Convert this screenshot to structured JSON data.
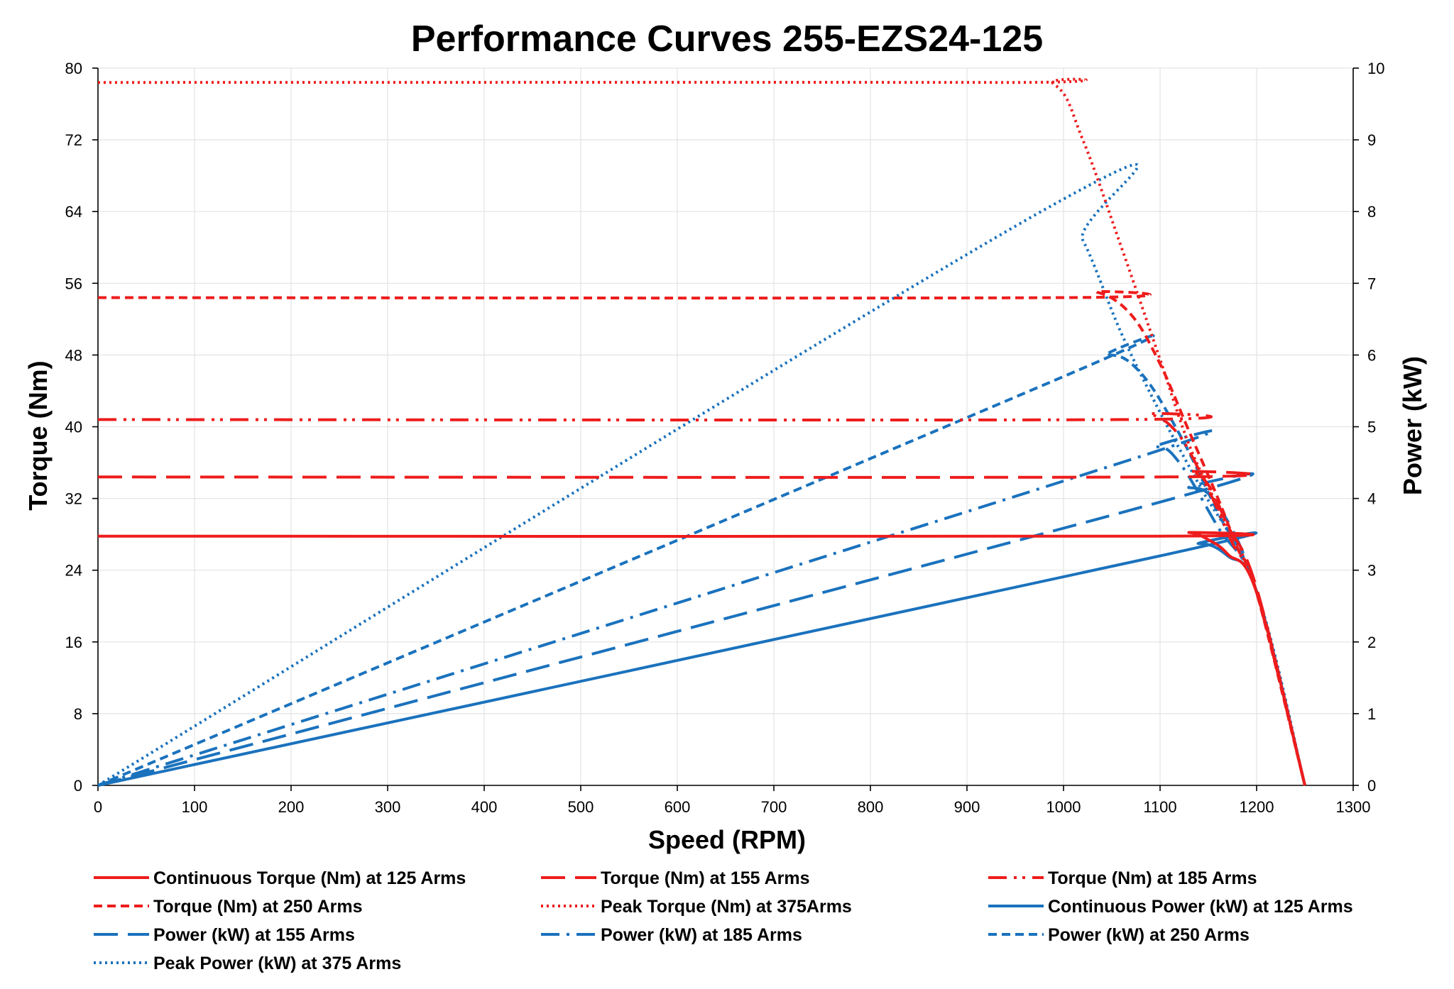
{
  "chart_data": {
    "type": "line",
    "title": "Performance Curves 255-EZS24-125",
    "xlabel": "Speed (RPM)",
    "ylabel_left": "Torque (Nm)",
    "ylabel_right": "Power (kW)",
    "xlim": [
      0,
      1300
    ],
    "ylim_left": [
      0,
      80
    ],
    "ylim_right": [
      0,
      10
    ],
    "x_ticks": [
      "0",
      "100",
      "200",
      "300",
      "400",
      "500",
      "600",
      "700",
      "800",
      "900",
      "1000",
      "1100",
      "1200",
      "1300"
    ],
    "y_left_ticks": [
      "0",
      "8",
      "16",
      "24",
      "32",
      "40",
      "48",
      "56",
      "64",
      "72",
      "80"
    ],
    "y_right_ticks": [
      "0",
      "1",
      "2",
      "3",
      "4",
      "5",
      "6",
      "7",
      "8",
      "9",
      "10"
    ],
    "grid": true,
    "legend_position": "bottom",
    "colors": {
      "torque": "#ee1c1c",
      "power": "#1a72bd"
    },
    "series": [
      {
        "name": "Continuous Torque (Nm) at 125 Arms",
        "axis": "left",
        "color": "#ee1c1c",
        "dash": "solid",
        "x": [
          0,
          1100,
          1130,
          1150,
          1170,
          1200,
          1250
        ],
        "y": [
          27.8,
          27.8,
          28.2,
          27.4,
          25.8,
          21.5,
          0
        ]
      },
      {
        "name": "Torque (Nm) at 155 Arms",
        "axis": "left",
        "color": "#ee1c1c",
        "dash": "longdash",
        "x": [
          0,
          1100,
          1130,
          1150,
          1170,
          1200,
          1250
        ],
        "y": [
          34.4,
          34.4,
          35,
          33.5,
          29,
          22,
          0
        ]
      },
      {
        "name": "Torque (Nm) at 185 Arms",
        "axis": "left",
        "color": "#ee1c1c",
        "dash": "dashdotdot",
        "x": [
          0,
          1060,
          1090,
          1120,
          1150,
          1175,
          1200,
          1250
        ],
        "y": [
          40.8,
          40.8,
          41.4,
          39,
          33,
          27,
          21.5,
          0
        ]
      },
      {
        "name": "Torque (Nm) at 250 Arms",
        "axis": "left",
        "color": "#ee1c1c",
        "dash": "dash",
        "x": [
          0,
          1000,
          1035,
          1070,
          1100,
          1130,
          1160,
          1180,
          1200,
          1250
        ],
        "y": [
          54.4,
          54.4,
          55,
          52.5,
          47,
          39.5,
          32,
          26.5,
          21.5,
          0
        ]
      },
      {
        "name": "Peak  Torque (Nm) at 375Arms",
        "axis": "left",
        "color": "#ee1c1c",
        "dash": "dot",
        "x": [
          0,
          930,
          990,
          1020,
          1060,
          1100,
          1130,
          1160,
          1200,
          1250
        ],
        "y": [
          78.4,
          78.4,
          78.2,
          72,
          60,
          47.5,
          38,
          31,
          21.5,
          0
        ]
      },
      {
        "name": "Continuous Power (kW) at 125 Arms",
        "axis": "right",
        "color": "#1a72bd",
        "dash": "solid",
        "x": [
          0,
          1100,
          1140,
          1170,
          1200,
          1250
        ],
        "y": [
          0,
          3.2,
          3.37,
          3.2,
          2.7,
          0
        ]
      },
      {
        "name": "Power (kW) at 155 Arms",
        "axis": "right",
        "color": "#1a72bd",
        "dash": "longdash",
        "x": [
          0,
          1100,
          1130,
          1160,
          1200,
          1250
        ],
        "y": [
          0,
          3.95,
          4.15,
          3.9,
          2.7,
          0
        ]
      },
      {
        "name": "Power (kW) at 185 Arms",
        "axis": "right",
        "color": "#1a72bd",
        "dash": "dashdot",
        "x": [
          0,
          1060,
          1095,
          1120,
          1160,
          1200,
          1250
        ],
        "y": [
          0,
          4.5,
          4.72,
          4.5,
          3.6,
          2.7,
          0
        ]
      },
      {
        "name": "Power (kW) at 250 Arms",
        "axis": "right",
        "color": "#1a72bd",
        "dash": "dash",
        "x": [
          0,
          1000,
          1045,
          1080,
          1120,
          1160,
          1200,
          1250
        ],
        "y": [
          0,
          5.7,
          6.0,
          5.75,
          4.9,
          3.8,
          2.7,
          0
        ]
      },
      {
        "name": "Peak Power (kW) at 375 Arms",
        "axis": "right",
        "color": "#1a72bd",
        "dash": "dot",
        "x": [
          0,
          990,
          1020,
          1060,
          1100,
          1140,
          1200,
          1250
        ],
        "y": [
          0,
          8.1,
          7.6,
          6.3,
          5.2,
          4.2,
          2.7,
          0
        ]
      }
    ]
  }
}
